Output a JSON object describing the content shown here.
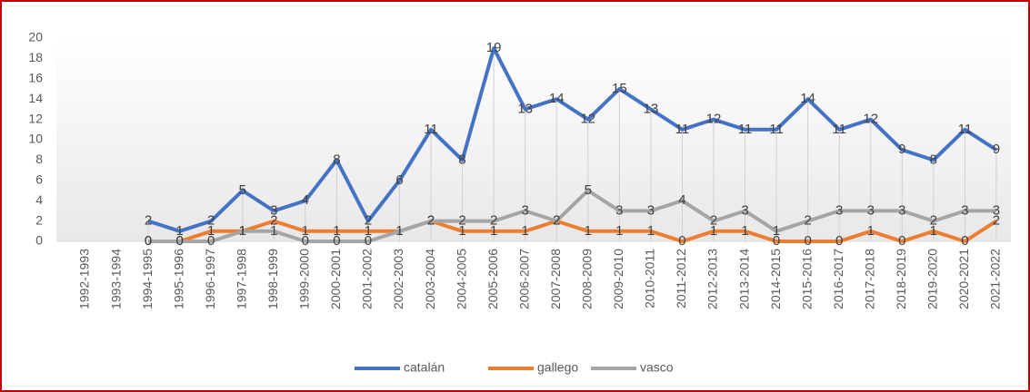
{
  "chart_data": {
    "type": "line",
    "categories": [
      "1992-1993",
      "1993-1994",
      "1994-1995",
      "1995-1996",
      "1996-1997",
      "1997-1998",
      "1998-1999",
      "1999-2000",
      "2000-2001",
      "2001-2002",
      "2002-2003",
      "2003-2004",
      "2004-2005",
      "2005-2006",
      "2006-2007",
      "2007-2008",
      "2008-2009",
      "2009-2010",
      "2010-2011",
      "2011-2012",
      "2012-2013",
      "2013-2014",
      "2014-2015",
      "2015-2016",
      "2016-2017",
      "2017-2018",
      "2018-2019",
      "2019-2020",
      "2020-2021",
      "2021-2022"
    ],
    "series": [
      {
        "name": "catalán",
        "color": "#4472c4",
        "values": [
          null,
          null,
          2,
          1,
          2,
          5,
          3,
          4,
          8,
          2,
          6,
          11,
          8,
          19,
          13,
          14,
          12,
          15,
          13,
          11,
          12,
          11,
          11,
          14,
          11,
          12,
          9,
          8,
          11,
          9
        ]
      },
      {
        "name": "gallego",
        "color": "#ed7d31",
        "values": [
          null,
          null,
          0,
          0,
          1,
          1,
          2,
          1,
          1,
          1,
          1,
          2,
          1,
          1,
          1,
          2,
          1,
          1,
          1,
          0,
          1,
          1,
          0,
          0,
          0,
          1,
          0,
          1,
          0,
          2
        ]
      },
      {
        "name": "vasco",
        "color": "#a5a5a5",
        "values": [
          null,
          null,
          0,
          0,
          0,
          1,
          1,
          0,
          0,
          0,
          1,
          2,
          2,
          2,
          3,
          2,
          5,
          3,
          3,
          4,
          2,
          3,
          1,
          2,
          3,
          3,
          3,
          2,
          3,
          3
        ]
      }
    ],
    "ylim": [
      0,
      20
    ],
    "yticks": [
      0,
      2,
      4,
      6,
      8,
      10,
      12,
      14,
      16,
      18,
      20
    ],
    "legend": "bottom"
  }
}
